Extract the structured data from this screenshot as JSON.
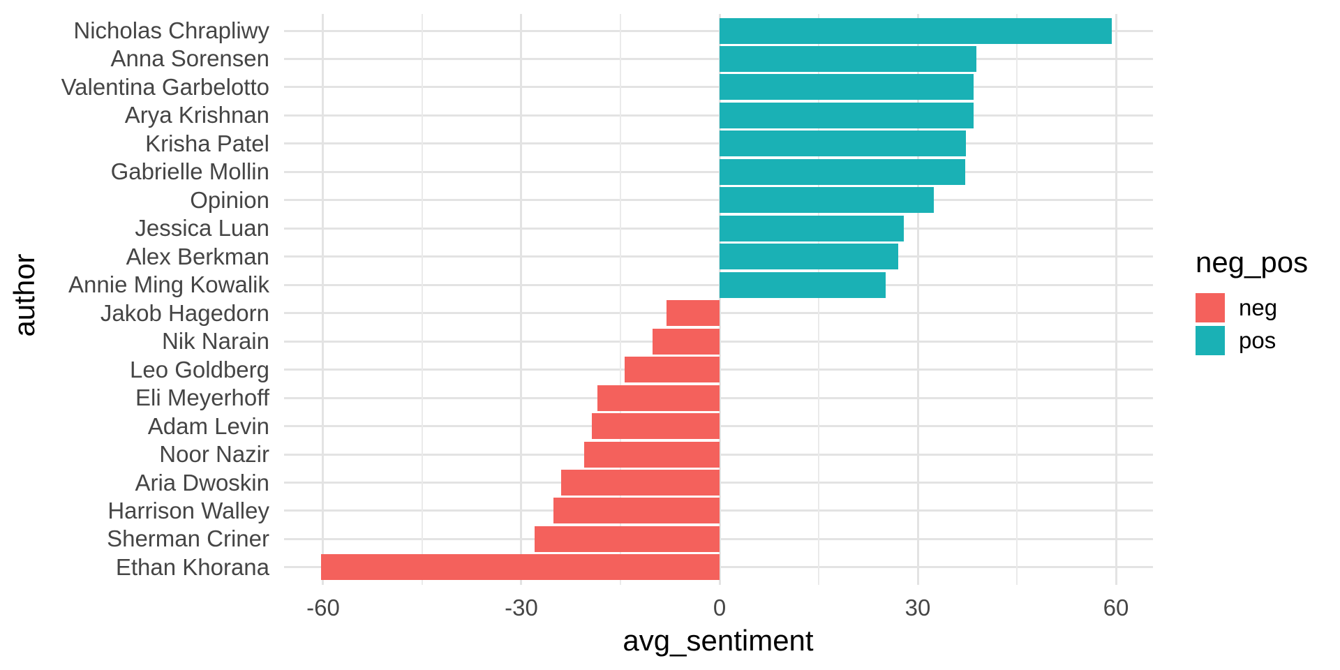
{
  "figure": {
    "background": "#FFFFFF"
  },
  "chart_data": {
    "type": "bar",
    "orientation": "horizontal",
    "title": "",
    "xlabel": "avg_sentiment",
    "ylabel": "author",
    "grid": true,
    "x_tick_values": [
      -60,
      -30,
      0,
      30,
      60
    ],
    "x_tick_labels": [
      "-60",
      "-30",
      "0",
      "30",
      "60"
    ],
    "x_minor_tick_values": [
      -45,
      -15,
      15,
      45
    ],
    "xlim": [
      -66,
      65.5
    ],
    "colors": {
      "neg": "#F4615C",
      "pos": "#1AB1B5"
    },
    "legend": {
      "title": "neg_pos",
      "position": "right",
      "entries": [
        {
          "label": "neg",
          "color": "#F4615C"
        },
        {
          "label": "pos",
          "color": "#1AB1B5"
        }
      ]
    },
    "bars": [
      {
        "author": "Nicholas Chrapliwy",
        "value": 59.4,
        "group": "pos"
      },
      {
        "author": "Anna Sorensen",
        "value": 38.9,
        "group": "pos"
      },
      {
        "author": "Valentina Garbelotto",
        "value": 38.5,
        "group": "pos"
      },
      {
        "author": "Arya Krishnan",
        "value": 38.5,
        "group": "pos"
      },
      {
        "author": "Krisha Patel",
        "value": 37.3,
        "group": "pos"
      },
      {
        "author": "Gabrielle Mollin",
        "value": 37.2,
        "group": "pos"
      },
      {
        "author": "Opinion",
        "value": 32.4,
        "group": "pos"
      },
      {
        "author": "Jessica Luan",
        "value": 27.9,
        "group": "pos"
      },
      {
        "author": "Alex Berkman",
        "value": 27.0,
        "group": "pos"
      },
      {
        "author": "Annie Ming Kowalik",
        "value": 25.1,
        "group": "pos"
      },
      {
        "author": "Jakob Hagedorn",
        "value": -8.0,
        "group": "neg"
      },
      {
        "author": "Nik Narain",
        "value": -10.1,
        "group": "neg"
      },
      {
        "author": "Leo Goldberg",
        "value": -14.4,
        "group": "neg"
      },
      {
        "author": "Eli Meyerhoff",
        "value": -18.5,
        "group": "neg"
      },
      {
        "author": "Adam Levin",
        "value": -19.3,
        "group": "neg"
      },
      {
        "author": "Noor Nazir",
        "value": -20.5,
        "group": "neg"
      },
      {
        "author": "Aria Dwoskin",
        "value": -24.0,
        "group": "neg"
      },
      {
        "author": "Harrison Walley",
        "value": -25.1,
        "group": "neg"
      },
      {
        "author": "Sherman Criner",
        "value": -28.0,
        "group": "neg"
      },
      {
        "author": "Ethan Khorana",
        "value": -60.3,
        "group": "neg"
      }
    ]
  }
}
